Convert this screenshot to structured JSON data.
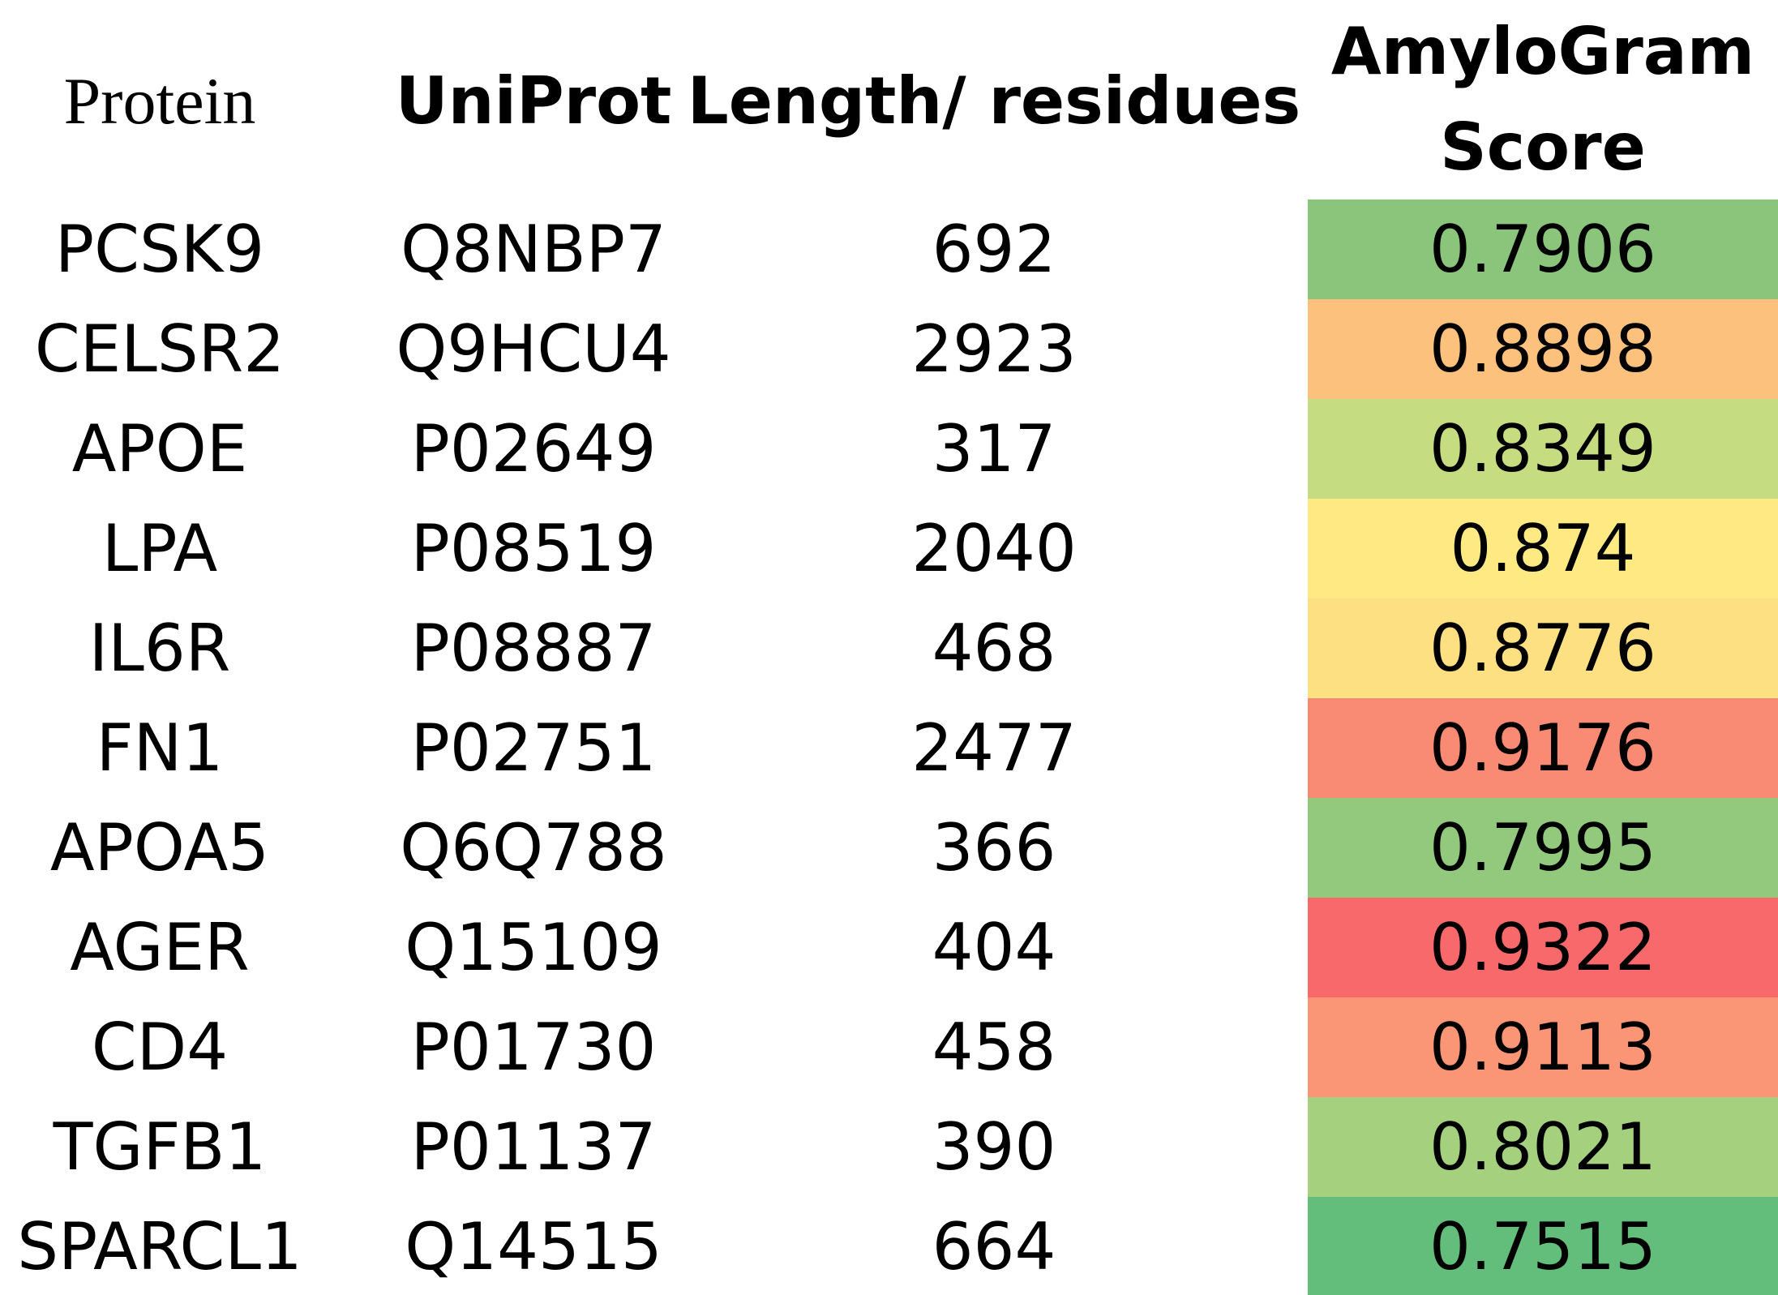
{
  "table": {
    "header": [
      "Protein",
      "UniProt",
      "Length/ residues",
      "AmyloGram Score"
    ],
    "rows": [
      {
        "protein": "PCSK9",
        "uniprot": "Q8NBP7",
        "length": 692,
        "score": 0.7906,
        "color": "#8ac57b"
      },
      {
        "protein": "CELSR2",
        "uniprot": "Q9HCU4",
        "length": 2923,
        "score": 0.8898,
        "color": "#fcc17c"
      },
      {
        "protein": "APOE",
        "uniprot": "P02649",
        "length": 317,
        "score": 0.8349,
        "color": "#c6dc81"
      },
      {
        "protein": "LPA",
        "uniprot": "P08519",
        "length": 2040,
        "score": 0.874,
        "color": "#fee983"
      },
      {
        "protein": "IL6R",
        "uniprot": "P08887",
        "length": 468,
        "score": 0.8776,
        "color": "#fde081"
      },
      {
        "protein": "FN1",
        "uniprot": "P02751",
        "length": 2477,
        "score": 0.9176,
        "color": "#f98a73"
      },
      {
        "protein": "APOA5",
        "uniprot": "Q6Q788",
        "length": 366,
        "score": 0.7995,
        "color": "#93c97c"
      },
      {
        "protein": "AGER",
        "uniprot": "Q15109",
        "length": 404,
        "score": 0.9322,
        "color": "#f8696b"
      },
      {
        "protein": "CD4",
        "uniprot": "P01730",
        "length": 458,
        "score": 0.9113,
        "color": "#fa9575"
      },
      {
        "protein": "TGFB1",
        "uniprot": "P01137",
        "length": 390,
        "score": 0.8021,
        "color": "#a5d17e"
      },
      {
        "protein": "SPARCL1",
        "uniprot": "Q14515",
        "length": 664,
        "score": 0.7515,
        "color": "#63be7b"
      }
    ]
  }
}
